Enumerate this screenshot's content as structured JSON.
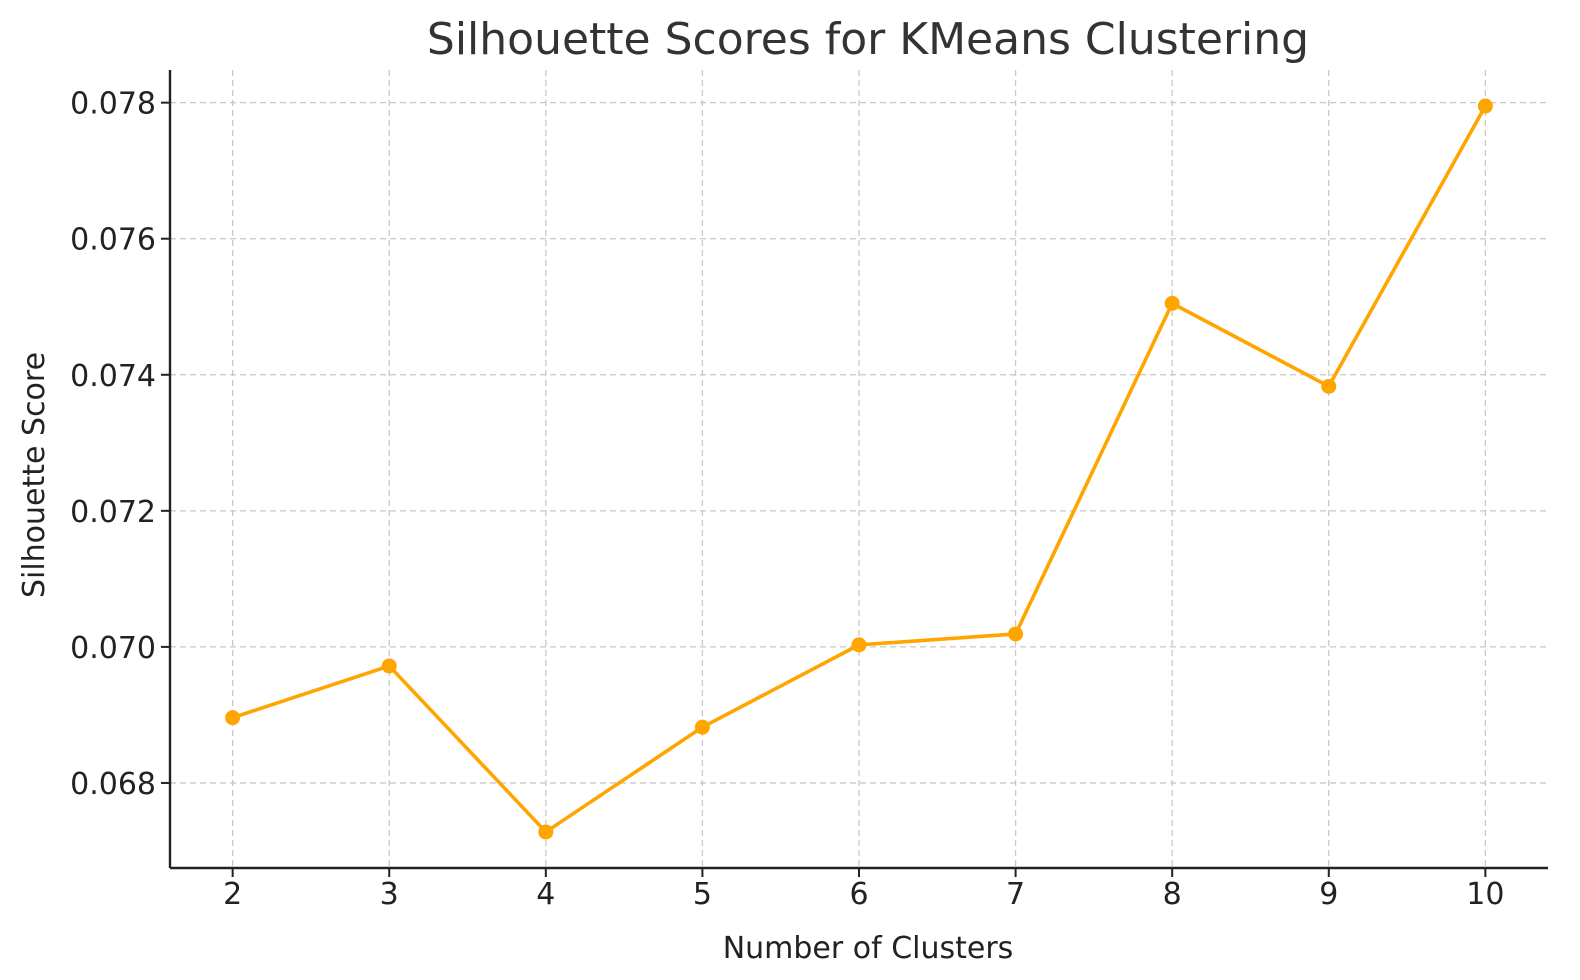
{
  "chart_data": {
    "type": "line",
    "title": "Silhouette Scores for KMeans Clustering",
    "xlabel": "Number of Clusters",
    "ylabel": "Silhouette Score",
    "x": [
      2,
      3,
      4,
      5,
      6,
      7,
      8,
      9,
      10
    ],
    "x_tick_labels": [
      "2",
      "3",
      "4",
      "5",
      "6",
      "7",
      "8",
      "9",
      "10"
    ],
    "y_ticks": [
      0.068,
      0.07,
      0.072,
      0.074,
      0.076,
      0.078
    ],
    "y_tick_labels": [
      "0.068",
      "0.070",
      "0.072",
      "0.074",
      "0.076",
      "0.078"
    ],
    "series": [
      {
        "values": [
          0.06896,
          0.06972,
          0.06728,
          0.06882,
          0.07003,
          0.07019,
          0.07505,
          0.07383,
          0.07795
        ],
        "color": "#FFA500",
        "marker": "circle"
      }
    ],
    "xlim": [
      1.6,
      10.4
    ],
    "ylim": [
      0.06675,
      0.07848
    ],
    "grid": true
  }
}
